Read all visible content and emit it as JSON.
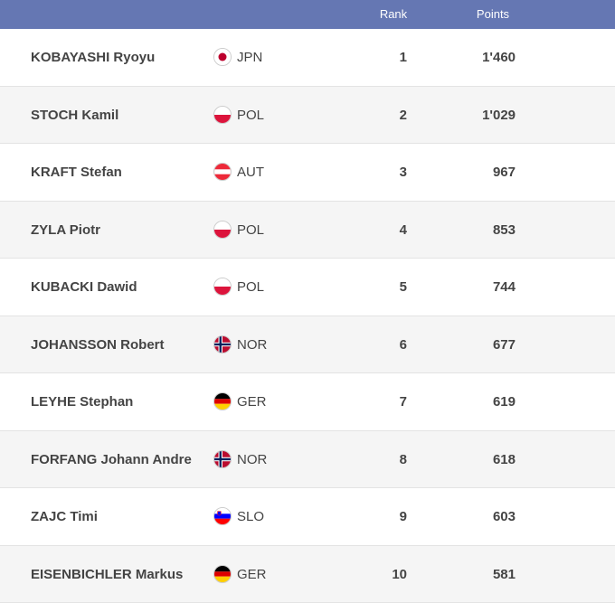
{
  "header": {
    "rank_label": "Rank",
    "points_label": "Points"
  },
  "rows": [
    {
      "name": "KOBAYASHI Ryoyu",
      "nation": "JPN",
      "flag": "jpn-flag-icon",
      "rank": "1",
      "points": "1'460"
    },
    {
      "name": "STOCH Kamil",
      "nation": "POL",
      "flag": "pol-flag-icon",
      "rank": "2",
      "points": "1'029"
    },
    {
      "name": "KRAFT Stefan",
      "nation": "AUT",
      "flag": "aut-flag-icon",
      "rank": "3",
      "points": "967"
    },
    {
      "name": "ZYLA Piotr",
      "nation": "POL",
      "flag": "pol-flag-icon",
      "rank": "4",
      "points": "853"
    },
    {
      "name": "KUBACKI Dawid",
      "nation": "POL",
      "flag": "pol-flag-icon",
      "rank": "5",
      "points": "744"
    },
    {
      "name": "JOHANSSON Robert",
      "nation": "NOR",
      "flag": "nor-flag-icon",
      "rank": "6",
      "points": "677"
    },
    {
      "name": "LEYHE Stephan",
      "nation": "GER",
      "flag": "ger-flag-icon",
      "rank": "7",
      "points": "619"
    },
    {
      "name": "FORFANG Johann Andre",
      "nation": "NOR",
      "flag": "nor-flag-icon",
      "rank": "8",
      "points": "618"
    },
    {
      "name": "ZAJC Timi",
      "nation": "SLO",
      "flag": "slo-flag-icon",
      "rank": "9",
      "points": "603"
    },
    {
      "name": "EISENBICHLER Markus",
      "nation": "GER",
      "flag": "ger-flag-icon",
      "rank": "10",
      "points": "581"
    }
  ],
  "colors": {
    "header_bg": "#6577b3",
    "row_alt": "#f5f5f5",
    "text": "#444444"
  }
}
